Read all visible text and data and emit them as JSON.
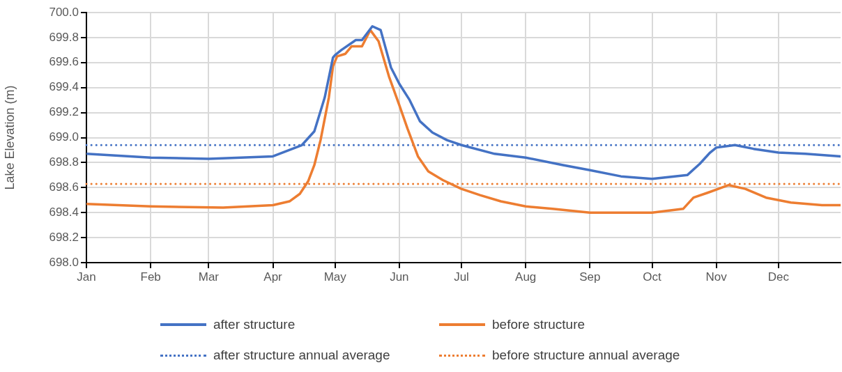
{
  "chart_data": {
    "type": "line",
    "ylabel": "Lake Elevation (m)",
    "xlim": [
      "--01-01",
      "--12-31"
    ],
    "xticks": [
      {
        "value": "--01-01",
        "label": "Jan"
      },
      {
        "value": "--02-01",
        "label": "Feb"
      },
      {
        "value": "--03-01",
        "label": "Mar"
      },
      {
        "value": "--04-01",
        "label": "Apr"
      },
      {
        "value": "--05-01",
        "label": "May"
      },
      {
        "value": "--06-01",
        "label": "Jun"
      },
      {
        "value": "--07-01",
        "label": "Jul"
      },
      {
        "value": "--08-01",
        "label": "Aug"
      },
      {
        "value": "--09-01",
        "label": "Sep"
      },
      {
        "value": "--10-01",
        "label": "Oct"
      },
      {
        "value": "--11-01",
        "label": "Nov"
      },
      {
        "value": "--12-01",
        "label": "Dec"
      }
    ],
    "ylim": [
      698,
      700
    ],
    "yticks": [
      {
        "value": 698,
        "label": "698.0"
      },
      {
        "value": 698.2,
        "label": "698.2"
      },
      {
        "value": 698.4,
        "label": "698.4"
      },
      {
        "value": 698.6,
        "label": "698.6"
      },
      {
        "value": 698.8,
        "label": "698.8"
      },
      {
        "value": 699,
        "label": "699.0"
      },
      {
        "value": 699.2,
        "label": "699.2"
      },
      {
        "value": 699.4,
        "label": "699.4"
      },
      {
        "value": 699.6,
        "label": "699.6"
      },
      {
        "value": 699.8,
        "label": "699.8"
      },
      {
        "value": 700,
        "label": "700.0"
      }
    ],
    "grid": true,
    "legend": "bottom",
    "marker": "none",
    "line_style": "solid",
    "series": [
      {
        "name": "after structure",
        "color": "#4472c4",
        "x": [
          "--01-01",
          "--02-01",
          "--03-01",
          "--04-01",
          "--04-15",
          "--04-21",
          "--04-26",
          "--04-30",
          "--05-01",
          "--05-04",
          "--05-11",
          "--05-14",
          "--05-19",
          "--05-23",
          "--05-28",
          "--06-01",
          "--06-06",
          "--06-11",
          "--06-17",
          "--06-24",
          "--07-01",
          "--07-17",
          "--08-01",
          "--08-19",
          "--09-01",
          "--09-16",
          "--10-01",
          "--10-18",
          "--10-24",
          "--10-29",
          "--11-01",
          "--11-10",
          "--11-19",
          "--12-01",
          "--12-14",
          "--12-31"
        ],
        "values": [
          698.87,
          698.84,
          698.83,
          698.85,
          698.94,
          699.05,
          699.32,
          699.64,
          699.66,
          699.7,
          699.78,
          699.78,
          699.89,
          699.86,
          699.56,
          699.43,
          699.3,
          699.13,
          699.04,
          698.98,
          698.94,
          698.87,
          698.84,
          698.78,
          698.74,
          698.69,
          698.67,
          698.7,
          698.79,
          698.88,
          698.92,
          698.94,
          698.91,
          698.88,
          698.87,
          698.85
        ]
      },
      {
        "name": "before structure",
        "color": "#ed7d31",
        "x": [
          "--01-01",
          "--02-01",
          "--03-08",
          "--04-01",
          "--04-09",
          "--04-14",
          "--04-18",
          "--04-21",
          "--04-24",
          "--04-28",
          "--04-30",
          "--05-02",
          "--05-06",
          "--05-09",
          "--05-14",
          "--05-18",
          "--05-22",
          "--05-27",
          "--06-01",
          "--06-05",
          "--06-10",
          "--06-15",
          "--06-22",
          "--07-01",
          "--07-10",
          "--07-20",
          "--08-01",
          "--08-14",
          "--09-01",
          "--10-01",
          "--10-16",
          "--10-21",
          "--10-28",
          "--11-07",
          "--11-15",
          "--11-25",
          "--12-07",
          "--12-22",
          "--12-31"
        ],
        "values": [
          698.47,
          698.45,
          698.44,
          698.46,
          698.49,
          698.55,
          698.65,
          698.78,
          698.98,
          699.32,
          699.57,
          699.65,
          699.67,
          699.73,
          699.73,
          699.86,
          699.77,
          699.49,
          699.26,
          699.07,
          698.85,
          698.73,
          698.66,
          698.59,
          698.54,
          698.49,
          698.45,
          698.43,
          698.4,
          698.4,
          698.43,
          698.52,
          698.56,
          698.62,
          698.59,
          698.52,
          698.48,
          698.46,
          698.46
        ]
      }
    ],
    "ref_lines": [
      {
        "axis": "y",
        "value": 698.94,
        "label": "after structure annual average",
        "color": "#4472c4",
        "line_style": "dotted"
      },
      {
        "axis": "y",
        "value": 698.63,
        "label": "before structure annual average",
        "color": "#ed7d31",
        "line_style": "dotted"
      }
    ]
  }
}
